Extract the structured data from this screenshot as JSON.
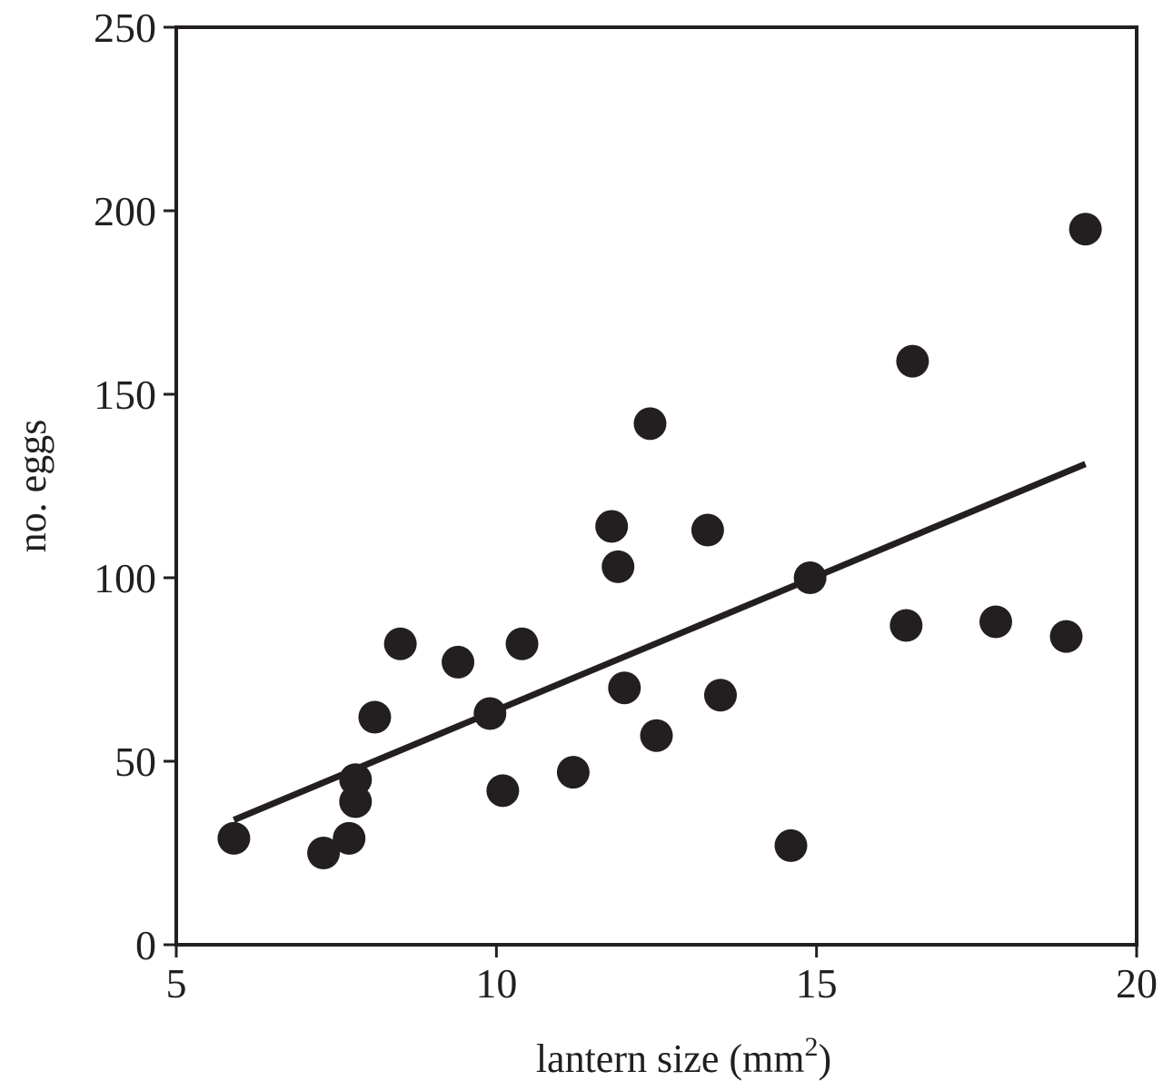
{
  "chart_data": {
    "type": "scatter",
    "title": "",
    "xlabel": "lantern size (mm",
    "xlabel_superscript": "2",
    "xlabel_suffix": ")",
    "ylabel": "no. eggs",
    "xlim": [
      5,
      20
    ],
    "ylim": [
      0,
      250
    ],
    "x_ticks": [
      5,
      10,
      15,
      20
    ],
    "y_ticks": [
      0,
      50,
      100,
      150,
      200,
      250
    ],
    "x_tick_labels": [
      "5",
      "10",
      "15",
      "20"
    ],
    "y_tick_labels": [
      "0",
      "50",
      "100",
      "150",
      "200",
      "250"
    ],
    "grid": false,
    "legend": "none",
    "series": [
      {
        "marker": "filled-circle",
        "color": "#231f20",
        "points": [
          {
            "x": 5.9,
            "y": 29
          },
          {
            "x": 7.3,
            "y": 25
          },
          {
            "x": 7.7,
            "y": 29
          },
          {
            "x": 7.8,
            "y": 39
          },
          {
            "x": 7.8,
            "y": 45
          },
          {
            "x": 8.1,
            "y": 62
          },
          {
            "x": 8.5,
            "y": 82
          },
          {
            "x": 9.4,
            "y": 77
          },
          {
            "x": 9.9,
            "y": 63
          },
          {
            "x": 10.1,
            "y": 42
          },
          {
            "x": 10.4,
            "y": 82
          },
          {
            "x": 11.2,
            "y": 47
          },
          {
            "x": 11.8,
            "y": 114
          },
          {
            "x": 11.9,
            "y": 103
          },
          {
            "x": 12.0,
            "y": 70
          },
          {
            "x": 12.4,
            "y": 142
          },
          {
            "x": 12.5,
            "y": 57
          },
          {
            "x": 13.3,
            "y": 113
          },
          {
            "x": 13.5,
            "y": 68
          },
          {
            "x": 14.6,
            "y": 27
          },
          {
            "x": 14.9,
            "y": 100
          },
          {
            "x": 16.4,
            "y": 87
          },
          {
            "x": 16.5,
            "y": 159
          },
          {
            "x": 17.8,
            "y": 88
          },
          {
            "x": 18.9,
            "y": 84
          },
          {
            "x": 19.2,
            "y": 195
          }
        ]
      }
    ],
    "trendline": {
      "type": "linear-fit",
      "color": "#231f20",
      "points": [
        {
          "x": 5.9,
          "y": 34
        },
        {
          "x": 19.2,
          "y": 131
        }
      ]
    }
  }
}
